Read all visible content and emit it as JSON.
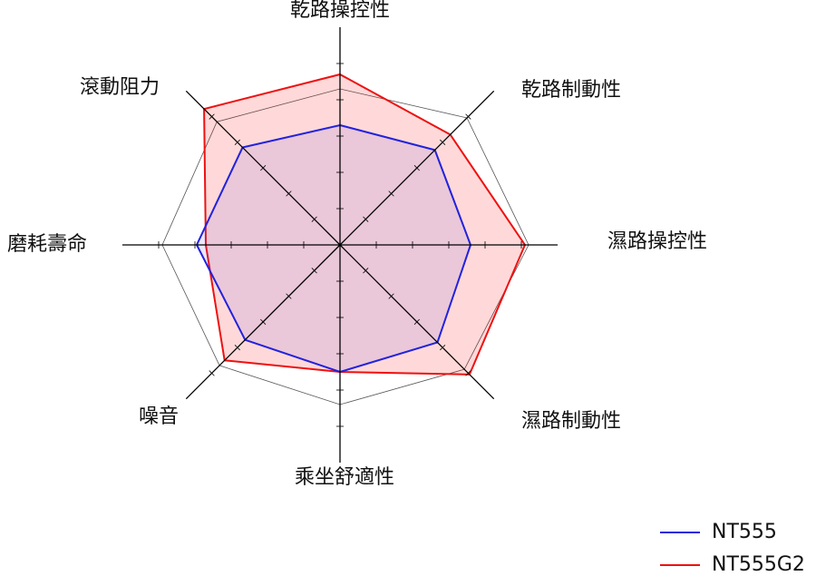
{
  "chart_data": {
    "type": "radar",
    "categories": [
      "乾路操控性",
      "乾路制動性",
      "濕路操控性",
      "濕路制動性",
      "乘坐舒適性",
      "噪音",
      "磨耗壽命",
      "滾動阻力"
    ],
    "rlim": [
      0,
      6
    ],
    "rticks": [
      1,
      2,
      3,
      4,
      5
    ],
    "series": [
      {
        "color": "#555555",
        "values": [
          4.3,
          4.95,
          5.2,
          4.85,
          4.4,
          4.7,
          4.9,
          4.8
        ]
      },
      {
        "name": "NT555G2",
        "color": "#ee1111",
        "values": [
          4.7,
          4.3,
          5.1,
          5.05,
          3.5,
          4.5,
          3.7,
          5.3
        ]
      },
      {
        "name": "NT555",
        "color": "#2222dd",
        "values": [
          3.3,
          3.7,
          3.6,
          3.8,
          3.5,
          3.7,
          3.95,
          3.8
        ]
      }
    ]
  }
}
